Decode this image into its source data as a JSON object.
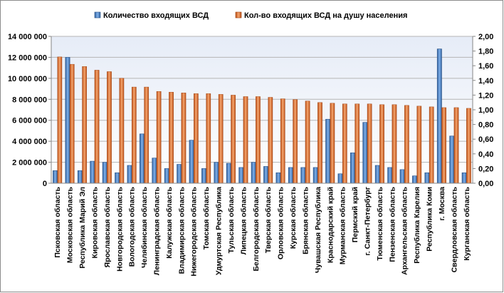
{
  "chart_data": {
    "type": "bar",
    "title": "",
    "xlabel": "",
    "ylabel": "",
    "legend_position": "top",
    "grid": true,
    "categories": [
      "Псковская область",
      "Московская область",
      "Республика Марий Эл",
      "Кировская область",
      "Ярославская область",
      "Новгородская область",
      "Вологодская область",
      "Челябинская область",
      "Ленинградская область",
      "Калужская область",
      "Владимирская область",
      "Нижегородская область",
      "Томская область",
      "Удмуртская Республика",
      "Тульская область",
      "Липецкая область",
      "Белгородская область",
      "Тверская область",
      "Орловская область",
      "Курская область",
      "Брянская область",
      "Чувашская Республика",
      "Краснодарский край",
      "Мурманская область",
      "Пермский край",
      "г. Санкт-Петербург",
      "Тюменская область",
      "Пензенская область",
      "Архангельская область",
      "Республика Карелия",
      "Республика Коми",
      "г. Москва",
      "Свердловская область",
      "Курганская область"
    ],
    "series": [
      {
        "name": "Количество входящих ВСД",
        "axis": "left",
        "color": "#4a7ebb",
        "values": [
          1200000,
          12000000,
          1200000,
          2100000,
          2000000,
          1000000,
          1700000,
          4700000,
          2400000,
          1400000,
          1800000,
          4100000,
          1400000,
          2000000,
          1900000,
          1500000,
          2000000,
          1600000,
          1000000,
          1500000,
          1500000,
          1500000,
          6100000,
          900000,
          2900000,
          5800000,
          1700000,
          1500000,
          1300000,
          700000,
          1000000,
          12800000,
          4500000,
          1000000
        ]
      },
      {
        "name": "Кол-во входящих ВСД на душу населения",
        "axis": "right",
        "color": "#c0571e",
        "values": [
          1.72,
          1.62,
          1.59,
          1.54,
          1.52,
          1.43,
          1.31,
          1.31,
          1.25,
          1.24,
          1.23,
          1.22,
          1.22,
          1.21,
          1.2,
          1.18,
          1.18,
          1.17,
          1.15,
          1.14,
          1.12,
          1.1,
          1.09,
          1.08,
          1.08,
          1.08,
          1.07,
          1.07,
          1.06,
          1.05,
          1.04,
          1.03,
          1.03,
          1.02
        ]
      }
    ],
    "y_left": {
      "min": 0,
      "max": 14000000,
      "step": 2000000,
      "tick_labels": [
        "0",
        "2 000 000",
        "4 000 000",
        "6 000 000",
        "8 000 000",
        "10 000 000",
        "12 000 000",
        "14 000 000"
      ]
    },
    "y_right": {
      "min": 0,
      "max": 2,
      "step": 0.2,
      "tick_labels": [
        "0,00",
        "0,20",
        "0,40",
        "0,60",
        "0,80",
        "1,00",
        "1,20",
        "1,40",
        "1,60",
        "1,80",
        "2,00"
      ]
    }
  }
}
